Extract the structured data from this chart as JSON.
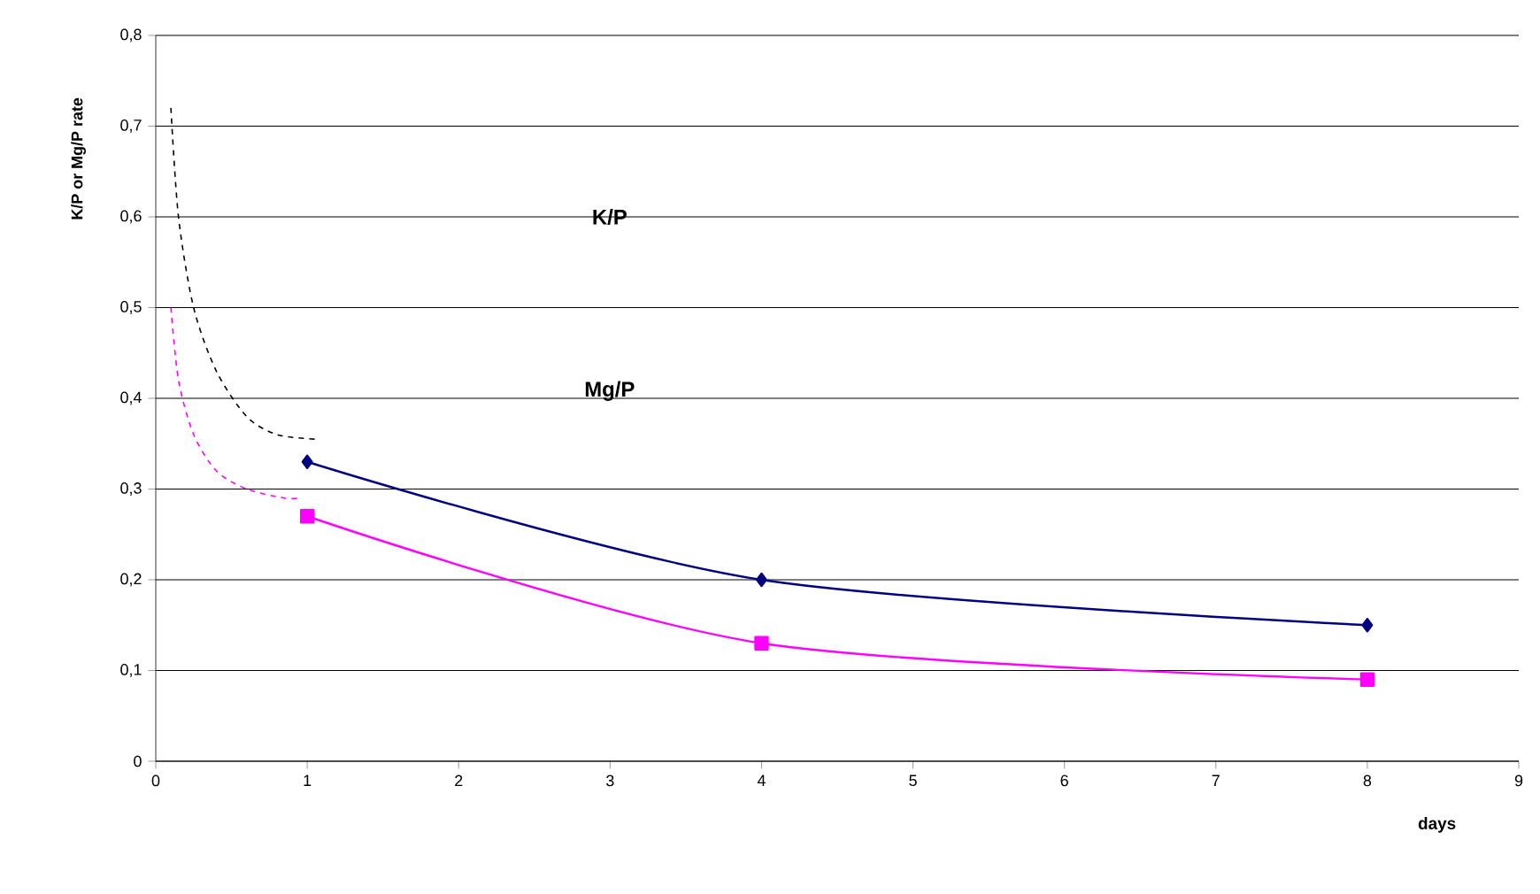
{
  "chart_data": {
    "type": "line",
    "ylabel": "K/P or Mg/P rate",
    "xlabel": "days",
    "xlim": [
      0,
      9
    ],
    "xticks": [
      0,
      1,
      2,
      3,
      4,
      5,
      6,
      7,
      8,
      9
    ],
    "ylim": [
      0,
      0.8
    ],
    "yticks": [
      0,
      {
        "value": 0.1,
        "label": "0,1"
      },
      {
        "value": 0.2,
        "label": "0,2"
      },
      {
        "value": 0.3,
        "label": "0,3"
      },
      {
        "value": 0.4,
        "label": "0,4"
      },
      {
        "value": 0.5,
        "label": "0,5"
      },
      {
        "value": 0.6,
        "label": "0,6"
      },
      {
        "value": 0.7,
        "label": "0,7"
      },
      {
        "value": 0.8,
        "label": "0,8"
      }
    ],
    "grid": "y",
    "series": [
      {
        "color": "#000000",
        "line_style": "dashed",
        "marker": "none",
        "x": [
          0.1,
          0.15,
          0.25,
          0.4,
          0.6,
          0.8,
          1.05
        ],
        "values": [
          0.72,
          0.6,
          0.5,
          0.43,
          0.38,
          0.36,
          0.355
        ]
      },
      {
        "color": "#ff00ff",
        "line_style": "dashed",
        "marker": "none",
        "x": [
          0.1,
          0.15,
          0.25,
          0.4,
          0.6,
          0.85,
          0.95
        ],
        "values": [
          0.5,
          0.42,
          0.36,
          0.32,
          0.3,
          0.29,
          0.29
        ]
      },
      {
        "color": "#000080",
        "line_style": "solid",
        "marker": "diamond",
        "x": [
          1,
          4,
          8
        ],
        "values": [
          0.33,
          0.2,
          0.15
        ]
      },
      {
        "color": "#ff00ff",
        "line_style": "solid",
        "marker": "square",
        "x": [
          1,
          4,
          8
        ],
        "values": [
          0.27,
          0.13,
          0.09
        ]
      }
    ],
    "annotations": [
      "K/P",
      "Mg/P"
    ]
  }
}
